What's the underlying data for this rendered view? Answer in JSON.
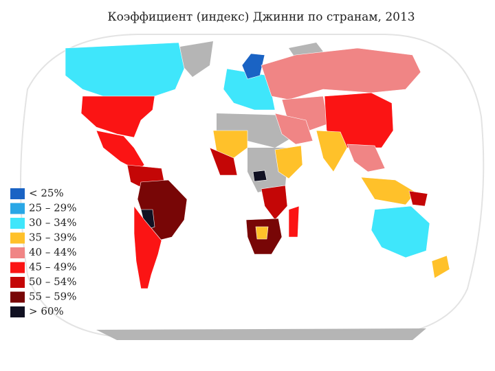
{
  "title": "Коэффициент (индекс) Джинни по странам, 2013",
  "legend": [
    {
      "label": "< 25%",
      "color": "#1a63c4"
    },
    {
      "label": "25 – 29%",
      "color": "#2aa7e6"
    },
    {
      "label": "30 – 34%",
      "color": "#3fe6fb"
    },
    {
      "label": "35 – 39%",
      "color": "#ffc12a"
    },
    {
      "label": "40 – 44%",
      "color": "#f08585"
    },
    {
      "label": "45 – 49%",
      "color": "#fb1414"
    },
    {
      "label": "50 – 54%",
      "color": "#c40606"
    },
    {
      "label": "55 – 59%",
      "color": "#780606"
    },
    {
      "label": "> 60%",
      "color": "#111122"
    }
  ]
}
